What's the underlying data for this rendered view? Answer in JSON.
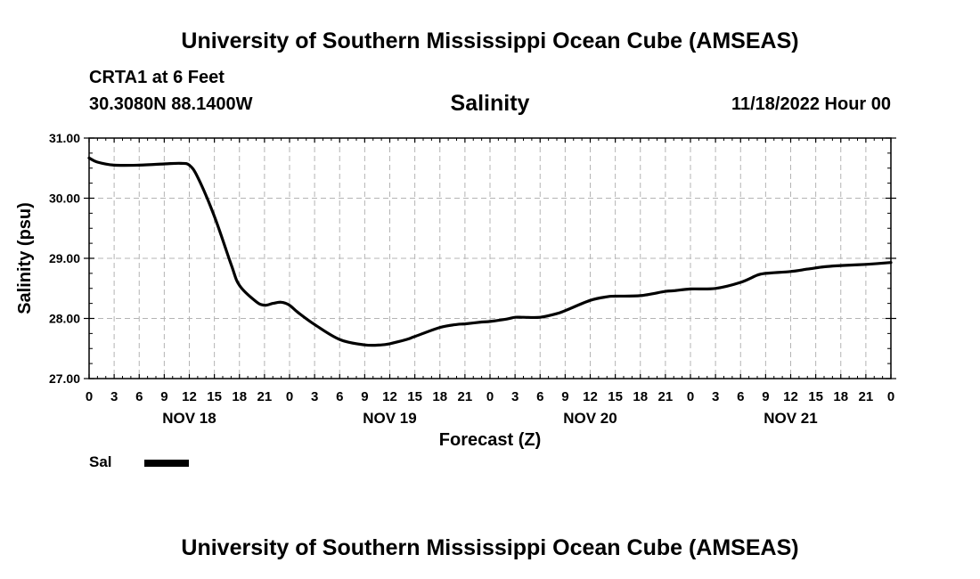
{
  "header": {
    "title": "University of Southern Mississippi Ocean Cube (AMSEAS)",
    "station": "CRTA1 at 6 Feet",
    "coords": "30.3080N  88.1400W",
    "variable": "Salinity",
    "datetime": "11/18/2022 Hour 00"
  },
  "legend": {
    "label": "Sal",
    "color": "#000000"
  },
  "footer": {
    "title": "University of Southern Mississippi Ocean Cube (AMSEAS)"
  },
  "chart_data": {
    "type": "line",
    "title": "Salinity",
    "xlabel": "Forecast (Z)",
    "ylabel": "Salinity (psu)",
    "ylim": [
      27.0,
      31.0
    ],
    "xlim_hours": [
      0,
      96
    ],
    "y_ticks": [
      "27.00",
      "28.00",
      "29.00",
      "30.00",
      "31.00"
    ],
    "x_tick_labels": [
      "0",
      "3",
      "6",
      "9",
      "12",
      "15",
      "18",
      "21",
      "0",
      "3",
      "6",
      "9",
      "12",
      "15",
      "18",
      "21",
      "0",
      "3",
      "6",
      "9",
      "12",
      "15",
      "18",
      "21",
      "0",
      "3",
      "6",
      "9",
      "12",
      "15",
      "18",
      "21",
      "0"
    ],
    "day_labels": [
      "NOV 18",
      "NOV 19",
      "NOV 20",
      "NOV 21"
    ],
    "grid": true,
    "series": [
      {
        "name": "Sal",
        "x_hours": [
          0,
          1,
          3,
          6,
          9,
          11,
          12,
          13,
          15,
          17,
          18,
          20,
          21,
          22,
          23,
          24,
          25,
          27,
          30,
          33,
          35,
          36,
          38,
          39,
          42,
          44,
          45,
          47,
          48,
          50,
          51,
          52,
          54,
          56,
          57,
          60,
          62,
          63,
          66,
          69,
          70,
          72,
          75,
          78,
          80,
          81,
          84,
          86,
          88,
          90,
          93,
          96
        ],
        "values": [
          30.67,
          30.6,
          30.55,
          30.55,
          30.57,
          30.58,
          30.55,
          30.35,
          29.7,
          28.9,
          28.55,
          28.28,
          28.22,
          28.25,
          28.27,
          28.22,
          28.1,
          27.9,
          27.65,
          27.56,
          27.56,
          27.58,
          27.65,
          27.7,
          27.85,
          27.9,
          27.91,
          27.94,
          27.95,
          27.99,
          28.02,
          28.02,
          28.02,
          28.08,
          28.13,
          28.3,
          28.36,
          28.37,
          28.38,
          28.45,
          28.46,
          28.49,
          28.5,
          28.6,
          28.72,
          28.75,
          28.78,
          28.82,
          28.86,
          28.88,
          28.9,
          28.93
        ]
      }
    ]
  }
}
